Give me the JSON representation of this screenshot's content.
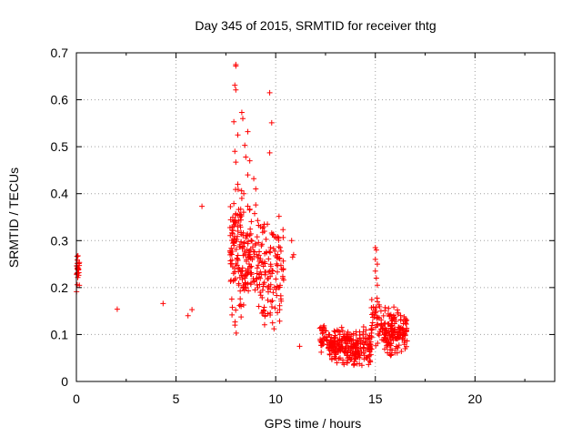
{
  "chart_data": {
    "type": "scatter",
    "title": "Day 345 of 2015, SRMTID for receiver thtg",
    "xlabel": "GPS time / hours",
    "ylabel": "SRMTID / TECUs",
    "xlim": [
      0,
      24
    ],
    "ylim": [
      0,
      0.7
    ],
    "xticks": [
      0,
      5,
      10,
      15,
      20
    ],
    "yticks": [
      0,
      0.1,
      0.2,
      0.3,
      0.4,
      0.5,
      0.6,
      0.7
    ],
    "grid": true,
    "marker": "+",
    "color": "#ff0000",
    "series": [
      {
        "name": "SRMTID",
        "clusters": [
          {
            "x": [
              0.0,
              0.15
            ],
            "y": [
              0.19,
              0.27
            ],
            "n": 25
          },
          {
            "x": [
              7.7,
              8.4
            ],
            "y": [
              0.1,
              0.45
            ],
            "n": 120
          },
          {
            "x": [
              8.4,
              9.2
            ],
            "y": [
              0.15,
              0.38
            ],
            "n": 90
          },
          {
            "x": [
              9.2,
              10.4
            ],
            "y": [
              0.09,
              0.36
            ],
            "n": 120
          },
          {
            "x": [
              12.2,
              12.6
            ],
            "y": [
              0.06,
              0.13
            ],
            "n": 30
          },
          {
            "x": [
              12.6,
              14.8
            ],
            "y": [
              0.03,
              0.12
            ],
            "n": 250
          },
          {
            "x": [
              14.8,
              15.3
            ],
            "y": [
              0.06,
              0.2
            ],
            "n": 40
          },
          {
            "x": [
              15.3,
              16.6
            ],
            "y": [
              0.05,
              0.16
            ],
            "n": 160
          }
        ],
        "points": [
          [
            2.05,
            0.154
          ],
          [
            4.35,
            0.166
          ],
          [
            5.6,
            0.14
          ],
          [
            5.8,
            0.153
          ],
          [
            6.3,
            0.373
          ],
          [
            8.0,
            0.675
          ],
          [
            8.0,
            0.672
          ],
          [
            7.95,
            0.631
          ],
          [
            8.0,
            0.621
          ],
          [
            8.3,
            0.573
          ],
          [
            8.35,
            0.56
          ],
          [
            7.9,
            0.553
          ],
          [
            8.1,
            0.525
          ],
          [
            8.45,
            0.503
          ],
          [
            8.6,
            0.532
          ],
          [
            7.95,
            0.49
          ],
          [
            8.5,
            0.478
          ],
          [
            8.7,
            0.47
          ],
          [
            8.0,
            0.467
          ],
          [
            8.6,
            0.44
          ],
          [
            8.9,
            0.432
          ],
          [
            8.1,
            0.42
          ],
          [
            8.3,
            0.39
          ],
          [
            9.0,
            0.41
          ],
          [
            8.4,
            0.4
          ],
          [
            9.7,
            0.615
          ],
          [
            9.8,
            0.551
          ],
          [
            9.7,
            0.487
          ],
          [
            9.0,
            0.376
          ],
          [
            10.8,
            0.3
          ],
          [
            10.9,
            0.27
          ],
          [
            10.85,
            0.265
          ],
          [
            11.2,
            0.075
          ],
          [
            15.0,
            0.285
          ],
          [
            15.05,
            0.28
          ],
          [
            15.0,
            0.26
          ],
          [
            15.1,
            0.25
          ],
          [
            15.0,
            0.235
          ],
          [
            15.05,
            0.22
          ],
          [
            15.1,
            0.205
          ]
        ]
      }
    ]
  }
}
